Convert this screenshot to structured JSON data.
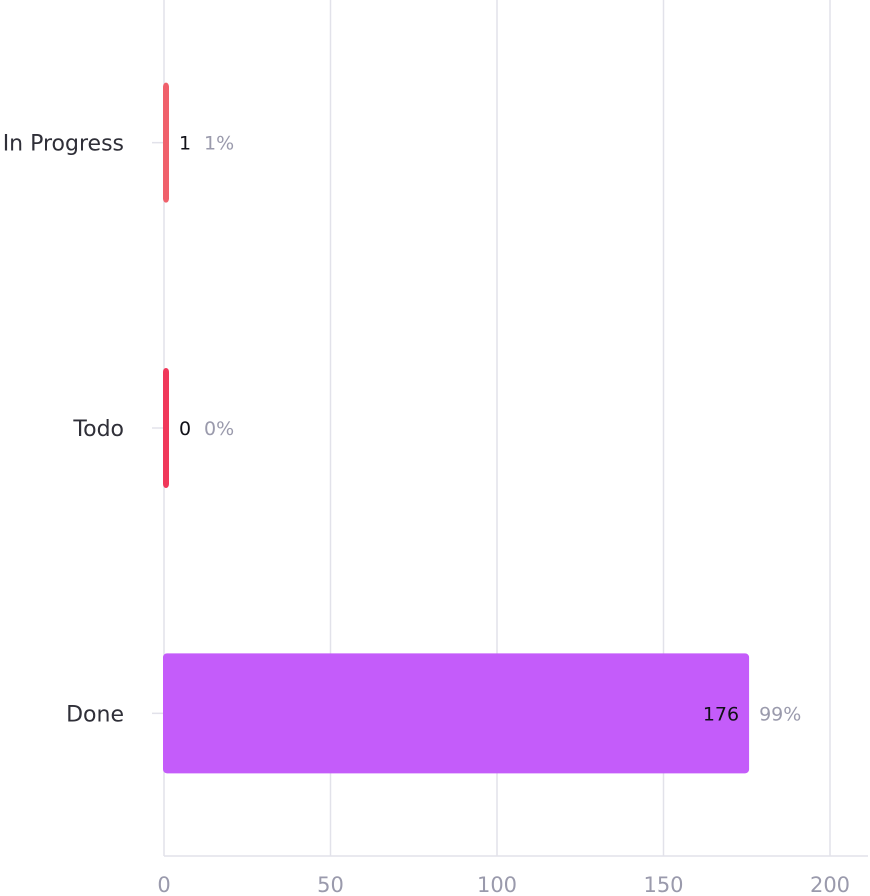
{
  "chart_data": {
    "type": "bar",
    "orientation": "horizontal",
    "title": "",
    "xlabel": "",
    "ylabel": "",
    "categories": [
      "In Progress",
      "Todo",
      "Done"
    ],
    "values": [
      1,
      0,
      176
    ],
    "percent_labels": [
      "1%",
      "0%",
      "99%"
    ],
    "value_labels": [
      "1",
      "0",
      "176"
    ],
    "colors": [
      "#f0606b",
      "#f0385a",
      "#c45cfa"
    ],
    "xlim": [
      0,
      210
    ],
    "xticks": [
      0,
      50,
      100,
      150,
      200
    ],
    "xtick_labels": [
      "0",
      "50",
      "100",
      "150",
      "200"
    ],
    "grid": true,
    "legend": false
  }
}
